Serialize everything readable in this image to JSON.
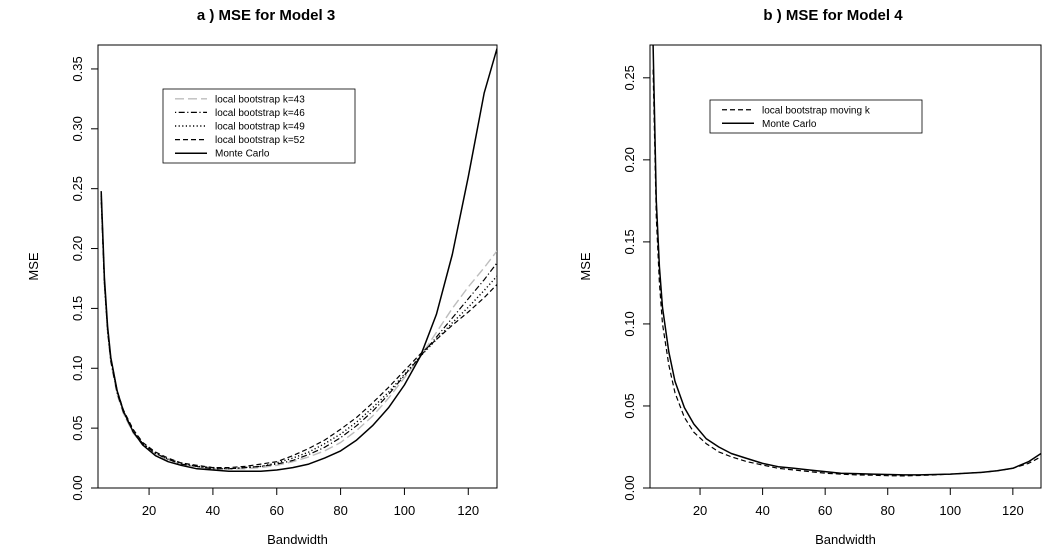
{
  "chart_data": [
    {
      "type": "line",
      "title": "a ) MSE for Model 3",
      "xlabel": "Bandwidth",
      "ylabel": "MSE",
      "xlim": [
        4,
        129
      ],
      "ylim": [
        0,
        0.37
      ],
      "xticks": [
        20,
        40,
        60,
        80,
        100,
        120
      ],
      "yticks": [
        0.0,
        0.05,
        0.1,
        0.15,
        0.2,
        0.25,
        0.3,
        0.35
      ],
      "ytick_labels": [
        "0.00",
        "0.05",
        "0.10",
        "0.15",
        "0.20",
        "0.25",
        "0.30",
        "0.35"
      ],
      "grid": false,
      "legend_position": "top-left",
      "series": [
        {
          "name": "local bootstrap k=43",
          "style": "longdash-gray",
          "x": [
            5,
            6,
            7,
            8,
            10,
            12,
            15,
            18,
            22,
            26,
            30,
            35,
            40,
            45,
            50,
            55,
            60,
            65,
            70,
            75,
            80,
            85,
            90,
            95,
            100,
            105,
            110,
            115,
            120,
            125,
            129
          ],
          "y": [
            0.24,
            0.17,
            0.13,
            0.105,
            0.078,
            0.062,
            0.046,
            0.036,
            0.028,
            0.023,
            0.02,
            0.017,
            0.016,
            0.016,
            0.016,
            0.017,
            0.019,
            0.022,
            0.026,
            0.031,
            0.038,
            0.048,
            0.06,
            0.075,
            0.092,
            0.11,
            0.13,
            0.15,
            0.168,
            0.184,
            0.198
          ]
        },
        {
          "name": "local bootstrap k=46",
          "style": "dotdash",
          "x": [
            5,
            6,
            7,
            8,
            10,
            12,
            15,
            18,
            22,
            26,
            30,
            35,
            40,
            45,
            50,
            55,
            60,
            65,
            70,
            75,
            80,
            85,
            90,
            95,
            100,
            105,
            110,
            115,
            120,
            125,
            129
          ],
          "y": [
            0.242,
            0.171,
            0.131,
            0.106,
            0.079,
            0.063,
            0.047,
            0.037,
            0.029,
            0.024,
            0.02,
            0.018,
            0.016,
            0.016,
            0.017,
            0.018,
            0.02,
            0.023,
            0.028,
            0.034,
            0.042,
            0.052,
            0.064,
            0.078,
            0.094,
            0.11,
            0.126,
            0.142,
            0.158,
            0.174,
            0.188
          ]
        },
        {
          "name": "local bootstrap k=49",
          "style": "dotted",
          "x": [
            5,
            6,
            7,
            8,
            10,
            12,
            15,
            18,
            22,
            26,
            30,
            35,
            40,
            45,
            50,
            55,
            60,
            65,
            70,
            75,
            80,
            85,
            90,
            95,
            100,
            105,
            110,
            115,
            120,
            125,
            129
          ],
          "y": [
            0.244,
            0.172,
            0.132,
            0.107,
            0.08,
            0.064,
            0.048,
            0.037,
            0.029,
            0.024,
            0.021,
            0.018,
            0.017,
            0.016,
            0.017,
            0.018,
            0.021,
            0.025,
            0.03,
            0.037,
            0.045,
            0.055,
            0.067,
            0.08,
            0.095,
            0.11,
            0.124,
            0.138,
            0.151,
            0.165,
            0.177
          ]
        },
        {
          "name": "local bootstrap k=52",
          "style": "dashed",
          "x": [
            5,
            6,
            7,
            8,
            10,
            12,
            15,
            18,
            22,
            26,
            30,
            35,
            40,
            45,
            50,
            55,
            60,
            65,
            70,
            75,
            80,
            85,
            90,
            95,
            100,
            105,
            110,
            115,
            120,
            125,
            129
          ],
          "y": [
            0.246,
            0.173,
            0.133,
            0.108,
            0.081,
            0.065,
            0.049,
            0.038,
            0.03,
            0.025,
            0.021,
            0.019,
            0.017,
            0.017,
            0.018,
            0.02,
            0.022,
            0.027,
            0.033,
            0.04,
            0.049,
            0.059,
            0.071,
            0.084,
            0.098,
            0.112,
            0.124,
            0.136,
            0.147,
            0.159,
            0.17
          ]
        },
        {
          "name": "Monte Carlo",
          "style": "solid",
          "x": [
            5,
            6,
            7,
            8,
            10,
            12,
            15,
            18,
            22,
            26,
            30,
            35,
            40,
            45,
            50,
            55,
            60,
            65,
            70,
            75,
            80,
            85,
            90,
            95,
            100,
            105,
            110,
            115,
            120,
            125,
            129
          ],
          "y": [
            0.248,
            0.176,
            0.135,
            0.109,
            0.081,
            0.064,
            0.047,
            0.036,
            0.027,
            0.022,
            0.019,
            0.016,
            0.015,
            0.014,
            0.014,
            0.014,
            0.015,
            0.017,
            0.02,
            0.025,
            0.031,
            0.04,
            0.052,
            0.067,
            0.086,
            0.11,
            0.145,
            0.195,
            0.26,
            0.33,
            0.367
          ]
        }
      ]
    },
    {
      "type": "line",
      "title": "b ) MSE for Model 4",
      "xlabel": "Bandwidth",
      "ylabel": "MSE",
      "xlim": [
        4,
        129
      ],
      "ylim": [
        0,
        0.27
      ],
      "xticks": [
        20,
        40,
        60,
        80,
        100,
        120
      ],
      "yticks": [
        0.0,
        0.05,
        0.1,
        0.15,
        0.2,
        0.25
      ],
      "ytick_labels": [
        "0.00",
        "0.05",
        "0.10",
        "0.15",
        "0.20",
        "0.25"
      ],
      "grid": false,
      "legend_position": "top-left",
      "series": [
        {
          "name": "local bootstrap moving k",
          "style": "dashed",
          "x": [
            5,
            6,
            7,
            8,
            10,
            12,
            15,
            18,
            22,
            26,
            30,
            35,
            40,
            45,
            50,
            55,
            60,
            65,
            70,
            75,
            80,
            85,
            90,
            95,
            100,
            105,
            110,
            115,
            120,
            125,
            129
          ],
          "y": [
            0.255,
            0.165,
            0.125,
            0.1,
            0.075,
            0.058,
            0.043,
            0.034,
            0.027,
            0.022,
            0.019,
            0.016,
            0.014,
            0.012,
            0.011,
            0.01,
            0.009,
            0.0085,
            0.008,
            0.0078,
            0.0075,
            0.0074,
            0.0076,
            0.008,
            0.0085,
            0.009,
            0.0095,
            0.0105,
            0.012,
            0.015,
            0.019
          ]
        },
        {
          "name": "Monte Carlo",
          "style": "solid",
          "x": [
            5,
            6,
            7,
            8,
            10,
            12,
            15,
            18,
            22,
            26,
            30,
            35,
            40,
            45,
            50,
            55,
            60,
            65,
            70,
            75,
            80,
            85,
            90,
            95,
            100,
            105,
            110,
            115,
            120,
            125,
            129
          ],
          "y": [
            0.27,
            0.175,
            0.135,
            0.11,
            0.083,
            0.065,
            0.049,
            0.039,
            0.03,
            0.025,
            0.021,
            0.018,
            0.015,
            0.013,
            0.012,
            0.011,
            0.01,
            0.009,
            0.0088,
            0.0085,
            0.0082,
            0.008,
            0.008,
            0.0082,
            0.0085,
            0.009,
            0.0095,
            0.0105,
            0.012,
            0.016,
            0.021
          ]
        }
      ]
    }
  ]
}
